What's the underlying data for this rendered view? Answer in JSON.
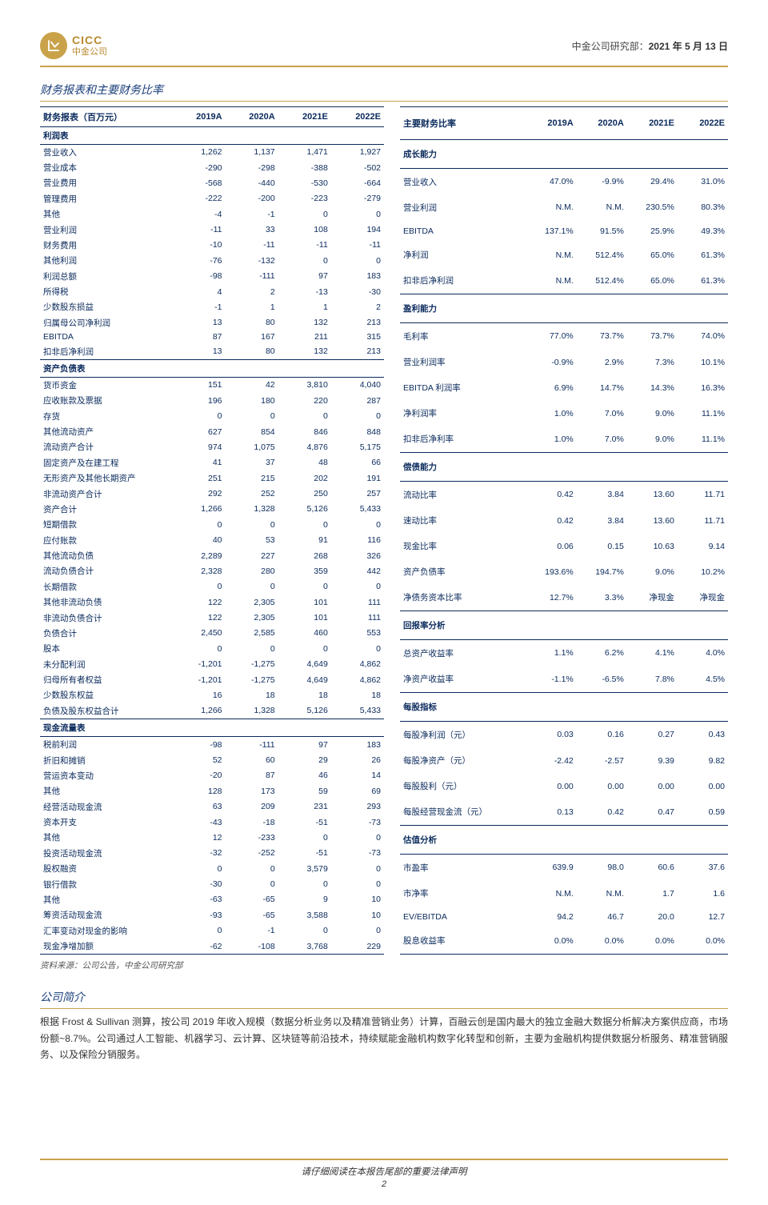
{
  "header": {
    "logo_en": "CICC",
    "logo_cn": "中金公司",
    "dept": "中金公司研究部：",
    "date": "2021 年 5 月 13 日"
  },
  "section1_title": "财务报表和主要财务比率",
  "left_table": {
    "header": [
      "财务报表（百万元）",
      "2019A",
      "2020A",
      "2021E",
      "2022E"
    ],
    "groups": [
      {
        "title": "利润表",
        "rows": [
          [
            "营业收入",
            "1,262",
            "1,137",
            "1,471",
            "1,927"
          ],
          [
            "营业成本",
            "-290",
            "-298",
            "-388",
            "-502"
          ],
          [
            "营业费用",
            "-568",
            "-440",
            "-530",
            "-664"
          ],
          [
            "管理费用",
            "-222",
            "-200",
            "-223",
            "-279"
          ],
          [
            "其他",
            "-4",
            "-1",
            "0",
            "0"
          ],
          [
            "营业利润",
            "-11",
            "33",
            "108",
            "194"
          ],
          [
            "财务费用",
            "-10",
            "-11",
            "-11",
            "-11"
          ],
          [
            "其他利润",
            "-76",
            "-132",
            "0",
            "0"
          ],
          [
            "利润总额",
            "-98",
            "-111",
            "97",
            "183"
          ],
          [
            "所得税",
            "4",
            "2",
            "-13",
            "-30"
          ],
          [
            "少数股东损益",
            "-1",
            "1",
            "1",
            "2"
          ],
          [
            "归属母公司净利润",
            "13",
            "80",
            "132",
            "213"
          ],
          [
            "EBITDA",
            "87",
            "167",
            "211",
            "315"
          ],
          [
            "扣非后净利润",
            "13",
            "80",
            "132",
            "213"
          ]
        ]
      },
      {
        "title": "资产负债表",
        "rows": [
          [
            "货币资金",
            "151",
            "42",
            "3,810",
            "4,040"
          ],
          [
            "应收账款及票据",
            "196",
            "180",
            "220",
            "287"
          ],
          [
            "存货",
            "0",
            "0",
            "0",
            "0"
          ],
          [
            "其他流动资产",
            "627",
            "854",
            "846",
            "848"
          ],
          [
            "流动资产合计",
            "974",
            "1,075",
            "4,876",
            "5,175"
          ],
          [
            "固定资产及在建工程",
            "41",
            "37",
            "48",
            "66"
          ],
          [
            "无形资产及其他长期资产",
            "251",
            "215",
            "202",
            "191"
          ],
          [
            "非流动资产合计",
            "292",
            "252",
            "250",
            "257"
          ],
          [
            "资产合计",
            "1,266",
            "1,328",
            "5,126",
            "5,433"
          ],
          [
            "短期借款",
            "0",
            "0",
            "0",
            "0"
          ],
          [
            "应付账款",
            "40",
            "53",
            "91",
            "116"
          ],
          [
            "其他流动负债",
            "2,289",
            "227",
            "268",
            "326"
          ],
          [
            "流动负债合计",
            "2,328",
            "280",
            "359",
            "442"
          ],
          [
            "长期借款",
            "0",
            "0",
            "0",
            "0"
          ],
          [
            "其他非流动负债",
            "122",
            "2,305",
            "101",
            "111"
          ],
          [
            "非流动负债合计",
            "122",
            "2,305",
            "101",
            "111"
          ],
          [
            "负债合计",
            "2,450",
            "2,585",
            "460",
            "553"
          ],
          [
            "股本",
            "0",
            "0",
            "0",
            "0"
          ],
          [
            "未分配利润",
            "-1,201",
            "-1,275",
            "4,649",
            "4,862"
          ],
          [
            "归母所有者权益",
            "-1,201",
            "-1,275",
            "4,649",
            "4,862"
          ],
          [
            "少数股东权益",
            "16",
            "18",
            "18",
            "18"
          ],
          [
            "负债及股东权益合计",
            "1,266",
            "1,328",
            "5,126",
            "5,433"
          ]
        ]
      },
      {
        "title": "现金流量表",
        "rows": [
          [
            "税前利润",
            "-98",
            "-111",
            "97",
            "183"
          ],
          [
            "折旧和摊销",
            "52",
            "60",
            "29",
            "26"
          ],
          [
            "营运资本变动",
            "-20",
            "87",
            "46",
            "14"
          ],
          [
            "其他",
            "128",
            "173",
            "59",
            "69"
          ],
          [
            "经营活动现金流",
            "63",
            "209",
            "231",
            "293"
          ],
          [
            "资本开支",
            "-43",
            "-18",
            "-51",
            "-73"
          ],
          [
            "其他",
            "12",
            "-233",
            "0",
            "0"
          ],
          [
            "投资活动现金流",
            "-32",
            "-252",
            "-51",
            "-73"
          ],
          [
            "股权融资",
            "0",
            "0",
            "3,579",
            "0"
          ],
          [
            "银行借款",
            "-30",
            "0",
            "0",
            "0"
          ],
          [
            "其他",
            "-63",
            "-65",
            "9",
            "10"
          ],
          [
            "筹资活动现金流",
            "-93",
            "-65",
            "3,588",
            "10"
          ],
          [
            "汇率变动对现金的影响",
            "0",
            "-1",
            "0",
            "0"
          ],
          [
            "现金净增加额",
            "-62",
            "-108",
            "3,768",
            "229"
          ]
        ]
      }
    ]
  },
  "right_table": {
    "header": [
      "主要财务比率",
      "2019A",
      "2020A",
      "2021E",
      "2022E"
    ],
    "groups": [
      {
        "title": "成长能力",
        "rows": [
          [
            "营业收入",
            "47.0%",
            "-9.9%",
            "29.4%",
            "31.0%"
          ],
          [
            "营业利润",
            "N.M.",
            "N.M.",
            "230.5%",
            "80.3%"
          ],
          [
            "EBITDA",
            "137.1%",
            "91.5%",
            "25.9%",
            "49.3%"
          ],
          [
            "净利润",
            "N.M.",
            "512.4%",
            "65.0%",
            "61.3%"
          ],
          [
            "扣非后净利润",
            "N.M.",
            "512.4%",
            "65.0%",
            "61.3%"
          ]
        ]
      },
      {
        "title": "盈利能力",
        "rows": [
          [
            "毛利率",
            "77.0%",
            "73.7%",
            "73.7%",
            "74.0%"
          ],
          [
            "营业利润率",
            "-0.9%",
            "2.9%",
            "7.3%",
            "10.1%"
          ],
          [
            "EBITDA 利润率",
            "6.9%",
            "14.7%",
            "14.3%",
            "16.3%"
          ],
          [
            "净利润率",
            "1.0%",
            "7.0%",
            "9.0%",
            "11.1%"
          ],
          [
            "扣非后净利率",
            "1.0%",
            "7.0%",
            "9.0%",
            "11.1%"
          ]
        ]
      },
      {
        "title": "偿债能力",
        "rows": [
          [
            "流动比率",
            "0.42",
            "3.84",
            "13.60",
            "11.71"
          ],
          [
            "速动比率",
            "0.42",
            "3.84",
            "13.60",
            "11.71"
          ],
          [
            "现金比率",
            "0.06",
            "0.15",
            "10.63",
            "9.14"
          ],
          [
            "资产负债率",
            "193.6%",
            "194.7%",
            "9.0%",
            "10.2%"
          ],
          [
            "净债务资本比率",
            "12.7%",
            "3.3%",
            "净现金",
            "净现金"
          ]
        ]
      },
      {
        "title": "回报率分析",
        "rows": [
          [
            "总资产收益率",
            "1.1%",
            "6.2%",
            "4.1%",
            "4.0%"
          ],
          [
            "净资产收益率",
            "-1.1%",
            "-6.5%",
            "7.8%",
            "4.5%"
          ]
        ]
      },
      {
        "title": "每股指标",
        "rows": [
          [
            "每股净利润（元）",
            "0.03",
            "0.16",
            "0.27",
            "0.43"
          ],
          [
            "每股净资产（元）",
            "-2.42",
            "-2.57",
            "9.39",
            "9.82"
          ],
          [
            "每股股利（元）",
            "0.00",
            "0.00",
            "0.00",
            "0.00"
          ],
          [
            "每股经营现金流（元）",
            "0.13",
            "0.42",
            "0.47",
            "0.59"
          ]
        ]
      },
      {
        "title": "估值分析",
        "rows": [
          [
            "市盈率",
            "639.9",
            "98.0",
            "60.6",
            "37.6"
          ],
          [
            "市净率",
            "N.M.",
            "N.M.",
            "1.7",
            "1.6"
          ],
          [
            "EV/EBITDA",
            "94.2",
            "46.7",
            "20.0",
            "12.7"
          ],
          [
            "股息收益率",
            "0.0%",
            "0.0%",
            "0.0%",
            "0.0%"
          ]
        ]
      }
    ]
  },
  "source": "资料来源：公司公告，中金公司研究部",
  "section2_title": "公司简介",
  "desc": "根据 Frost & Sullivan 测算，按公司 2019 年收入规模（数据分析业务以及精准营销业务）计算，百融云创是国内最大的独立金融大数据分析解决方案供应商，市场份额~8.7%。公司通过人工智能、机器学习、云计算、区块链等前沿技术，持续赋能金融机构数字化转型和创新，主要为金融机构提供数据分析服务、精准营销服务、以及保险分销服务。",
  "footer_txt": "请仔细阅读在本报告尾部的重要法律声明",
  "page_num": "2"
}
